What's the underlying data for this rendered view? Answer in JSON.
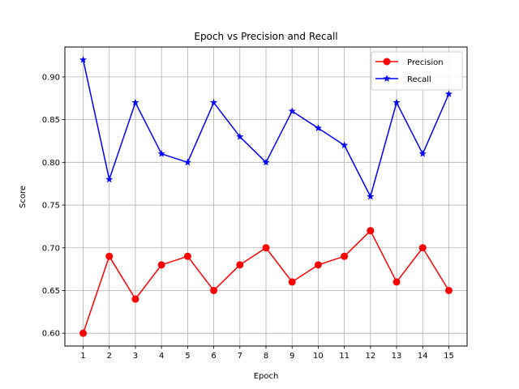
{
  "chart_data": {
    "type": "line",
    "title": "Epoch vs Precision and Recall",
    "xlabel": "Epoch",
    "ylabel": "Score",
    "x": [
      1,
      2,
      3,
      4,
      5,
      6,
      7,
      8,
      9,
      10,
      11,
      12,
      13,
      14,
      15
    ],
    "xlim": [
      0.3,
      15.7
    ],
    "ylim": [
      0.585,
      0.935
    ],
    "yticks": [
      0.6,
      0.65,
      0.7,
      0.75,
      0.8,
      0.85,
      0.9
    ],
    "ytick_labels": [
      "0.60",
      "0.65",
      "0.70",
      "0.75",
      "0.80",
      "0.85",
      "0.90"
    ],
    "grid": true,
    "legend_position": "top-right",
    "series": [
      {
        "name": "Precision",
        "color": "#ff0000",
        "marker": "circle",
        "values": [
          0.6,
          0.69,
          0.64,
          0.68,
          0.69,
          0.65,
          0.68,
          0.7,
          0.66,
          0.68,
          0.69,
          0.72,
          0.66,
          0.7,
          0.65
        ]
      },
      {
        "name": "Recall",
        "color": "#0000ff",
        "marker": "star",
        "values": [
          0.92,
          0.78,
          0.87,
          0.81,
          0.8,
          0.87,
          0.83,
          0.8,
          0.86,
          0.84,
          0.82,
          0.76,
          0.87,
          0.81,
          0.88
        ]
      }
    ]
  }
}
